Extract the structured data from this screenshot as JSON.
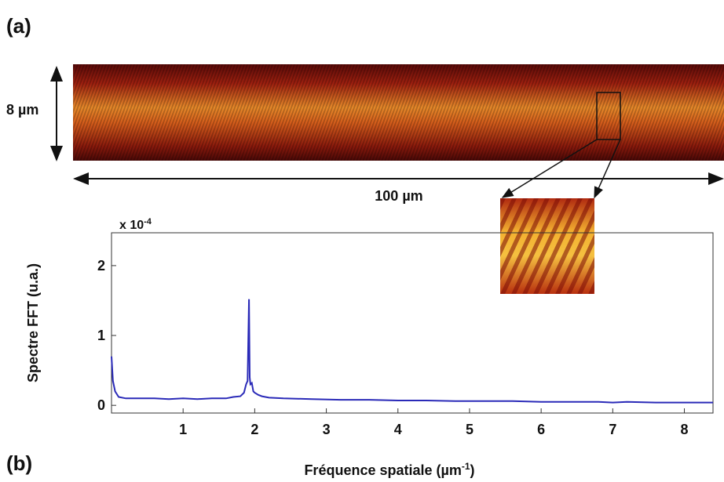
{
  "annotations": {
    "panel_a": "(a)",
    "panel_b": "(b)",
    "height_label": "8 µm",
    "width_label": "100 µm"
  },
  "chart_data": {
    "type": "line",
    "y_multiplier": [
      "x 10",
      "-4"
    ],
    "y_label": "Spectre FFT (u.a.)",
    "x_label": [
      "Fréquence spatiale (µm",
      "-1",
      ")"
    ],
    "x": [
      0.0,
      0.02,
      0.05,
      0.1,
      0.2,
      0.4,
      0.6,
      0.8,
      1.0,
      1.2,
      1.4,
      1.6,
      1.7,
      1.8,
      1.85,
      1.88,
      1.9,
      1.92,
      1.93,
      1.94,
      1.96,
      1.98,
      2.0,
      2.05,
      2.1,
      2.2,
      2.4,
      2.8,
      3.2,
      3.6,
      4.0,
      4.4,
      4.8,
      5.2,
      5.6,
      6.0,
      6.4,
      6.8,
      7.0,
      7.2,
      7.6,
      8.0,
      8.4
    ],
    "values": [
      0.7,
      0.35,
      0.2,
      0.12,
      0.1,
      0.1,
      0.1,
      0.09,
      0.1,
      0.09,
      0.1,
      0.1,
      0.12,
      0.13,
      0.18,
      0.3,
      0.35,
      1.52,
      0.4,
      0.3,
      0.32,
      0.2,
      0.18,
      0.15,
      0.13,
      0.11,
      0.1,
      0.09,
      0.08,
      0.08,
      0.07,
      0.07,
      0.06,
      0.06,
      0.06,
      0.05,
      0.05,
      0.05,
      0.04,
      0.05,
      0.04,
      0.04,
      0.04
    ],
    "color": "#2a2ab8",
    "xlim": [
      0,
      8.4
    ],
    "ylim": [
      -0.11,
      2.47
    ],
    "xticks": [
      1,
      2,
      3,
      4,
      5,
      6,
      7,
      8
    ],
    "yticks": [
      0,
      1,
      2
    ]
  }
}
